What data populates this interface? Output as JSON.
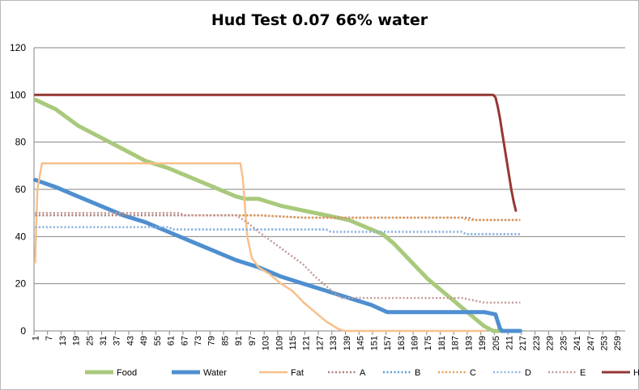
{
  "chart_data": {
    "type": "line",
    "title": "Hud Test 0.07 66% water",
    "xlabel": "",
    "ylabel": "",
    "ylim": [
      0,
      120
    ],
    "yticks": [
      0,
      20,
      40,
      60,
      80,
      100,
      120
    ],
    "x_range": [
      1,
      262
    ],
    "x_tick_labels": [
      "1",
      "7",
      "13",
      "19",
      "25",
      "31",
      "37",
      "43",
      "49",
      "55",
      "61",
      "67",
      "73",
      "79",
      "85",
      "91",
      "97",
      "103",
      "109",
      "115",
      "121",
      "127",
      "133",
      "139",
      "145",
      "151",
      "157",
      "163",
      "169",
      "175",
      "181",
      "187",
      "193",
      "199",
      "205",
      "211",
      "217",
      "223",
      "229",
      "235",
      "241",
      "247",
      "253",
      "259"
    ],
    "grid": "horizontal",
    "legend_position": "bottom",
    "series": [
      {
        "name": "Food",
        "color": "#a9c97c",
        "style": "solid",
        "width": 5,
        "points": [
          [
            1,
            98
          ],
          [
            10,
            94
          ],
          [
            20,
            87
          ],
          [
            30,
            82
          ],
          [
            40,
            77
          ],
          [
            50,
            72
          ],
          [
            60,
            69
          ],
          [
            70,
            65
          ],
          [
            80,
            61
          ],
          [
            90,
            57
          ],
          [
            94,
            56
          ],
          [
            100,
            56
          ],
          [
            110,
            53
          ],
          [
            120,
            51
          ],
          [
            130,
            49
          ],
          [
            140,
            47
          ],
          [
            150,
            43
          ],
          [
            155,
            41
          ],
          [
            160,
            37
          ],
          [
            165,
            32
          ],
          [
            170,
            27
          ],
          [
            175,
            22
          ],
          [
            180,
            18
          ],
          [
            185,
            14
          ],
          [
            190,
            10
          ],
          [
            195,
            6
          ],
          [
            200,
            2
          ],
          [
            204,
            0
          ],
          [
            210,
            0
          ]
        ]
      },
      {
        "name": "Water",
        "color": "#4e8fd0",
        "style": "solid",
        "width": 5,
        "points": [
          [
            1,
            64
          ],
          [
            10,
            61
          ],
          [
            20,
            57
          ],
          [
            30,
            53
          ],
          [
            40,
            49
          ],
          [
            50,
            46
          ],
          [
            60,
            42
          ],
          [
            70,
            38
          ],
          [
            80,
            34
          ],
          [
            90,
            30
          ],
          [
            100,
            27
          ],
          [
            110,
            23
          ],
          [
            120,
            20
          ],
          [
            130,
            17
          ],
          [
            140,
            14
          ],
          [
            150,
            11
          ],
          [
            157,
            8
          ],
          [
            180,
            8
          ],
          [
            200,
            8
          ],
          [
            205,
            7
          ],
          [
            207,
            1
          ],
          [
            208,
            0
          ],
          [
            216,
            0
          ]
        ]
      },
      {
        "name": "Fat",
        "color": "#f7c08a",
        "style": "solid",
        "width": 2.5,
        "points": [
          [
            1,
            29
          ],
          [
            2,
            60
          ],
          [
            4,
            71
          ],
          [
            60,
            71
          ],
          [
            92,
            71
          ],
          [
            93,
            65
          ],
          [
            95,
            40
          ],
          [
            97,
            31
          ],
          [
            100,
            27
          ],
          [
            105,
            24
          ],
          [
            110,
            20
          ],
          [
            115,
            17
          ],
          [
            120,
            12
          ],
          [
            125,
            8
          ],
          [
            130,
            4
          ],
          [
            135,
            1
          ],
          [
            138,
            0
          ],
          [
            200,
            0
          ]
        ]
      },
      {
        "name": "A",
        "color": "#a7807d",
        "style": "dotted",
        "width": 2.5,
        "points": [
          [
            1,
            49
          ],
          [
            100,
            49
          ],
          [
            120,
            48
          ],
          [
            150,
            48
          ],
          [
            193,
            48
          ],
          [
            196,
            47
          ],
          [
            216,
            47
          ]
        ]
      },
      {
        "name": "B",
        "color": "#5b9bd5",
        "style": "dotted",
        "width": 2.5,
        "points": [
          [
            1,
            44
          ],
          [
            60,
            44
          ],
          [
            62,
            43
          ],
          [
            130,
            43
          ],
          [
            132,
            42
          ],
          [
            190,
            42
          ],
          [
            192,
            41
          ],
          [
            216,
            41
          ]
        ]
      },
      {
        "name": "C",
        "color": "#e59d56",
        "style": "dotted",
        "width": 2.5,
        "points": [
          [
            1,
            50
          ],
          [
            65,
            50
          ],
          [
            67,
            49
          ],
          [
            100,
            49
          ],
          [
            120,
            48
          ],
          [
            190,
            48
          ],
          [
            193,
            47
          ],
          [
            216,
            47
          ]
        ]
      },
      {
        "name": "D",
        "color": "#8db4e2",
        "style": "dotted",
        "width": 2.5,
        "points": [
          [
            1,
            44
          ],
          [
            60,
            44
          ],
          [
            62,
            43
          ],
          [
            130,
            43
          ],
          [
            132,
            42
          ],
          [
            190,
            42
          ],
          [
            192,
            41
          ],
          [
            216,
            41
          ]
        ]
      },
      {
        "name": "E",
        "color": "#c49a99",
        "style": "dotted",
        "width": 2.5,
        "points": [
          [
            1,
            50
          ],
          [
            65,
            50
          ],
          [
            67,
            49
          ],
          [
            90,
            49
          ],
          [
            95,
            46
          ],
          [
            100,
            42
          ],
          [
            110,
            35
          ],
          [
            120,
            28
          ],
          [
            125,
            23
          ],
          [
            130,
            19
          ],
          [
            135,
            15
          ],
          [
            137,
            14
          ],
          [
            190,
            14
          ],
          [
            195,
            13
          ],
          [
            200,
            12
          ],
          [
            216,
            12
          ]
        ]
      },
      {
        "name": "HP",
        "color": "#953734",
        "style": "solid",
        "width": 3,
        "points": [
          [
            1,
            100
          ],
          [
            200,
            100
          ],
          [
            204,
            100
          ],
          [
            205,
            99
          ],
          [
            206,
            95
          ],
          [
            207,
            90
          ],
          [
            208,
            84
          ],
          [
            209,
            78
          ],
          [
            210,
            72
          ],
          [
            211,
            66
          ],
          [
            212,
            60
          ],
          [
            213,
            55
          ],
          [
            214,
            51
          ]
        ]
      }
    ]
  }
}
